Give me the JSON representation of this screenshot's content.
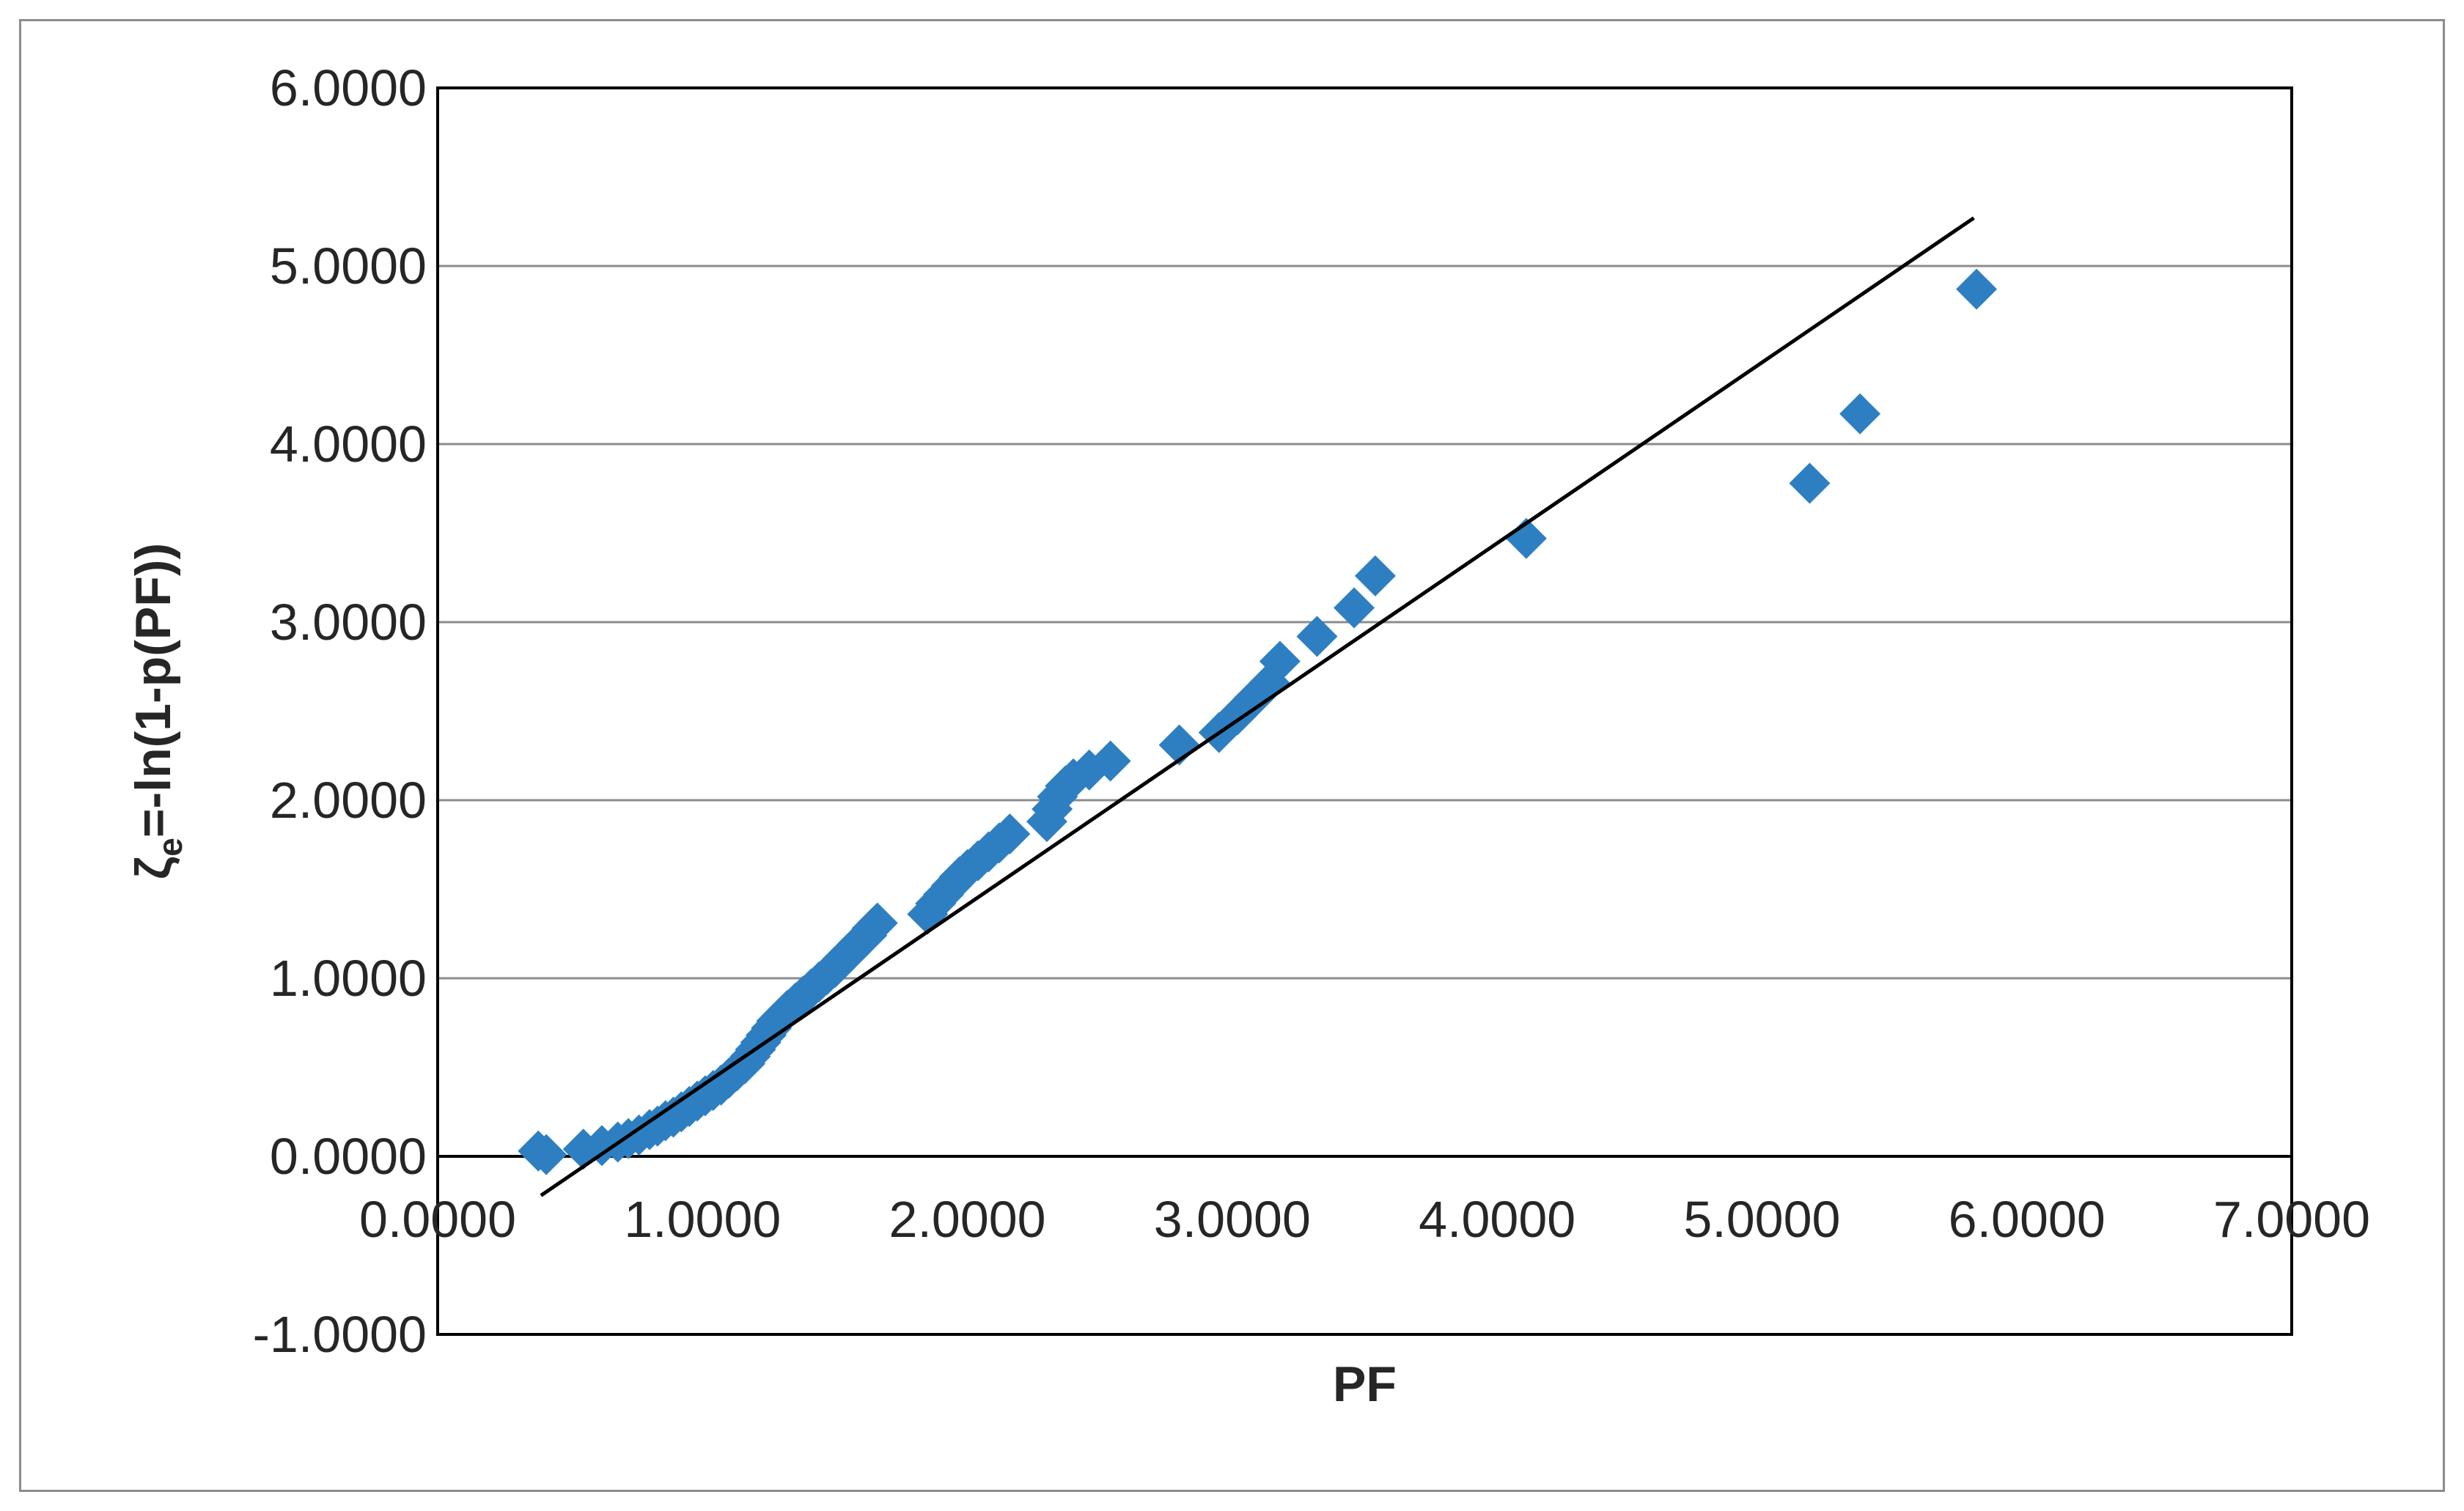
{
  "chart_data": {
    "type": "scatter",
    "title": "",
    "xlabel": "PF",
    "ylabel": "ζe=-ln(1-p(PF))",
    "ylabel_main": "ζ",
    "ylabel_sub": "e",
    "ylabel_rest": "=-ln(1-p(PF))",
    "xlim": [
      0,
      7
    ],
    "ylim": [
      -1,
      6
    ],
    "x_ticks": [
      "0.0000",
      "1.0000",
      "2.0000",
      "3.0000",
      "4.0000",
      "5.0000",
      "6.0000",
      "7.0000"
    ],
    "y_ticks": [
      "-1.0000",
      "0.0000",
      "1.0000",
      "2.0000",
      "3.0000",
      "4.0000",
      "5.0000",
      "6.0000"
    ],
    "grid": "horizontal",
    "legend": "none",
    "marker": "diamond",
    "marker_color": "#2e7fc1",
    "line_color": "#000000",
    "axis_color": "#000000",
    "grid_color": "#8c8c8c",
    "trendline": {
      "x": [
        0.39,
        5.8
      ],
      "y": [
        -0.22,
        5.27
      ]
    },
    "series": [
      {
        "x": [
          0.38,
          0.41,
          0.55,
          0.62,
          0.68,
          0.72,
          0.76,
          0.8,
          0.83,
          0.86,
          0.89,
          0.92,
          0.95,
          0.98,
          1.01,
          1.04,
          1.07,
          1.1,
          1.13,
          1.16,
          1.18,
          1.2,
          1.22,
          1.24,
          1.26,
          1.28,
          1.3,
          1.32,
          1.35,
          1.38,
          1.41,
          1.44,
          1.47,
          1.5,
          1.53,
          1.56,
          1.59,
          1.62,
          1.64,
          1.66,
          1.85,
          1.88,
          1.91,
          1.94,
          1.97,
          2.0,
          2.04,
          2.08,
          2.12,
          2.16,
          2.3,
          2.32,
          2.34,
          2.37,
          2.4,
          2.46,
          2.54,
          2.8,
          2.95,
          3.02,
          3.08,
          3.14,
          3.18,
          3.32,
          3.46,
          3.54,
          4.11,
          5.18,
          5.37,
          5.81
        ],
        "y": [
          0.03,
          0.01,
          0.04,
          0.06,
          0.08,
          0.1,
          0.12,
          0.15,
          0.17,
          0.2,
          0.22,
          0.25,
          0.28,
          0.31,
          0.34,
          0.37,
          0.4,
          0.44,
          0.48,
          0.52,
          0.56,
          0.6,
          0.64,
          0.68,
          0.72,
          0.76,
          0.79,
          0.82,
          0.86,
          0.9,
          0.94,
          0.98,
          1.02,
          1.06,
          1.11,
          1.15,
          1.2,
          1.24,
          1.28,
          1.31,
          1.36,
          1.42,
          1.47,
          1.52,
          1.57,
          1.61,
          1.66,
          1.71,
          1.76,
          1.81,
          1.88,
          1.95,
          2.02,
          2.08,
          2.12,
          2.17,
          2.22,
          2.31,
          2.38,
          2.48,
          2.57,
          2.66,
          2.78,
          2.92,
          3.08,
          3.26,
          3.47,
          3.78,
          4.17,
          4.87
        ]
      }
    ]
  }
}
